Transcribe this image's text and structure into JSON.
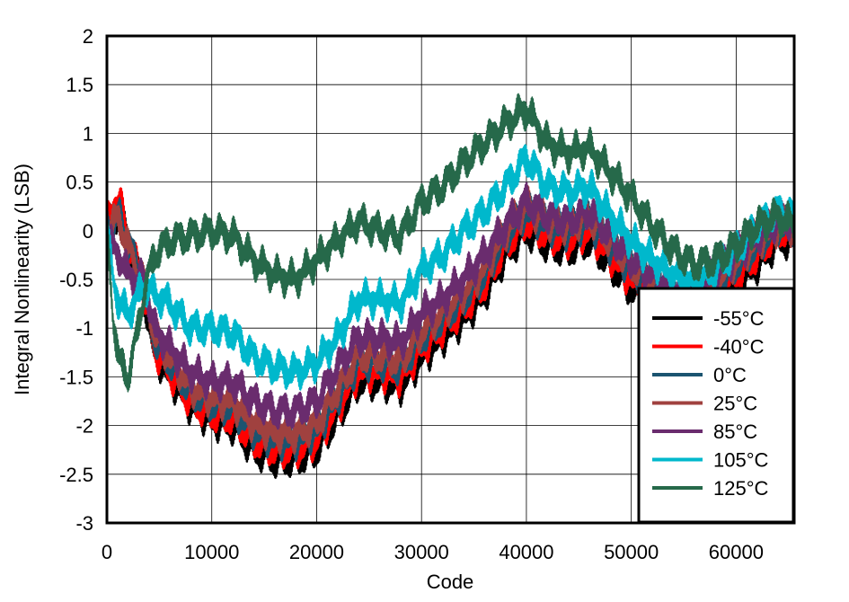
{
  "chart_data": {
    "type": "line",
    "xlabel": "Code",
    "ylabel": "Integral Nonlinearity (LSB)",
    "xlim": [
      0,
      65535
    ],
    "ylim": [
      -3,
      2
    ],
    "x_ticks": [
      0,
      10000,
      20000,
      30000,
      40000,
      50000,
      60000
    ],
    "x_tick_labels": [
      "0",
      "10000",
      "20000",
      "30000",
      "40000",
      "50000",
      "60000"
    ],
    "y_ticks": [
      2,
      1.5,
      1,
      0.5,
      0,
      -0.5,
      -1,
      -1.5,
      -2,
      -2.5,
      -3
    ],
    "y_tick_labels": [
      "2",
      "1.5",
      "1",
      "0.5",
      "0",
      "-0.5",
      "-1",
      "-1.5",
      "-2",
      "-2.5",
      "-3"
    ],
    "grid": true,
    "legend_position": "bottom-right",
    "ripple_amplitude_lsb": 0.3,
    "series": [
      {
        "name": "-55°C",
        "color": "#000000",
        "x": [
          0,
          600,
          1200,
          2000,
          2800,
          3600,
          4500,
          6000,
          8000,
          10000,
          12000,
          14000,
          16000,
          18000,
          20000,
          22000,
          24000,
          26000,
          28000,
          30000,
          32000,
          34000,
          36000,
          38000,
          40000,
          42000,
          44000,
          46000,
          48000,
          50000,
          52000,
          54000,
          56000,
          58000,
          60000,
          62000,
          64000,
          65535
        ],
        "y": [
          0.0,
          0.15,
          0.2,
          -0.1,
          -0.4,
          -0.7,
          -1.25,
          -1.5,
          -1.8,
          -1.95,
          -2.0,
          -2.25,
          -2.35,
          -2.35,
          -2.25,
          -1.9,
          -1.55,
          -1.55,
          -1.6,
          -1.3,
          -1.1,
          -0.9,
          -0.65,
          -0.25,
          0.0,
          -0.15,
          -0.2,
          -0.1,
          -0.35,
          -0.6,
          -0.75,
          -0.9,
          -0.9,
          -0.75,
          -0.55,
          -0.35,
          -0.1,
          -0.1
        ]
      },
      {
        "name": "-40°C",
        "color": "#ff0000",
        "x": [
          0,
          600,
          1200,
          2000,
          2800,
          3600,
          4500,
          6000,
          8000,
          10000,
          12000,
          14000,
          16000,
          18000,
          20000,
          22000,
          24000,
          26000,
          28000,
          30000,
          32000,
          34000,
          36000,
          38000,
          40000,
          42000,
          44000,
          46000,
          48000,
          50000,
          52000,
          54000,
          56000,
          58000,
          60000,
          62000,
          64000,
          65535
        ],
        "y": [
          0.05,
          0.25,
          0.3,
          -0.05,
          -0.35,
          -0.65,
          -1.2,
          -1.45,
          -1.75,
          -1.88,
          -1.92,
          -2.15,
          -2.25,
          -2.25,
          -2.15,
          -1.8,
          -1.45,
          -1.45,
          -1.5,
          -1.2,
          -1.0,
          -0.8,
          -0.55,
          -0.15,
          0.1,
          -0.05,
          -0.1,
          0.0,
          -0.25,
          -0.5,
          -0.65,
          -0.8,
          -0.8,
          -0.65,
          -0.45,
          -0.25,
          0.0,
          0.0
        ]
      },
      {
        "name": "0°C",
        "color": "#1b5470",
        "x": [
          0,
          600,
          1200,
          2000,
          2800,
          3600,
          4500,
          6000,
          8000,
          10000,
          12000,
          14000,
          16000,
          18000,
          20000,
          22000,
          24000,
          26000,
          28000,
          30000,
          32000,
          34000,
          36000,
          38000,
          40000,
          42000,
          44000,
          46000,
          48000,
          50000,
          52000,
          54000,
          56000,
          58000,
          60000,
          62000,
          64000,
          65535
        ],
        "y": [
          0.05,
          0.1,
          0.15,
          -0.1,
          -0.35,
          -0.6,
          -1.1,
          -1.35,
          -1.65,
          -1.78,
          -1.82,
          -2.05,
          -2.15,
          -2.15,
          -2.05,
          -1.7,
          -1.35,
          -1.35,
          -1.4,
          -1.1,
          -0.9,
          -0.7,
          -0.45,
          -0.05,
          0.2,
          0.05,
          0.0,
          0.1,
          -0.15,
          -0.4,
          -0.55,
          -0.7,
          -0.7,
          -0.55,
          -0.35,
          -0.15,
          0.05,
          0.05
        ]
      },
      {
        "name": "25°C",
        "color": "#a0413f",
        "x": [
          0,
          600,
          1200,
          2000,
          2800,
          3600,
          4500,
          6000,
          8000,
          10000,
          12000,
          14000,
          16000,
          18000,
          20000,
          22000,
          24000,
          26000,
          28000,
          30000,
          32000,
          34000,
          36000,
          38000,
          40000,
          42000,
          44000,
          46000,
          48000,
          50000,
          52000,
          54000,
          56000,
          58000,
          60000,
          62000,
          64000,
          65535
        ],
        "y": [
          0.0,
          0.1,
          0.1,
          -0.15,
          -0.4,
          -0.55,
          -1.05,
          -1.3,
          -1.6,
          -1.72,
          -1.75,
          -1.98,
          -2.08,
          -2.08,
          -1.98,
          -1.62,
          -1.28,
          -1.28,
          -1.33,
          -1.03,
          -0.83,
          -0.63,
          -0.38,
          0.0,
          0.25,
          0.1,
          0.05,
          0.15,
          -0.1,
          -0.35,
          -0.5,
          -0.65,
          -0.65,
          -0.5,
          -0.3,
          -0.1,
          0.05,
          0.05
        ]
      },
      {
        "name": "85°C",
        "color": "#6a2c6e",
        "x": [
          0,
          600,
          1200,
          2000,
          2800,
          3600,
          4500,
          6000,
          8000,
          10000,
          12000,
          14000,
          16000,
          18000,
          20000,
          22000,
          24000,
          26000,
          28000,
          30000,
          32000,
          34000,
          36000,
          38000,
          40000,
          42000,
          44000,
          46000,
          48000,
          50000,
          52000,
          54000,
          56000,
          58000,
          60000,
          62000,
          64000,
          65535
        ],
        "y": [
          0.0,
          -0.2,
          -0.25,
          -0.45,
          -0.5,
          -0.5,
          -1.0,
          -1.2,
          -1.45,
          -1.55,
          -1.55,
          -1.75,
          -1.85,
          -1.85,
          -1.75,
          -1.4,
          -1.1,
          -1.1,
          -1.15,
          -0.85,
          -0.7,
          -0.5,
          -0.25,
          0.05,
          0.3,
          0.15,
          0.1,
          0.2,
          -0.05,
          -0.3,
          -0.45,
          -0.6,
          -0.6,
          -0.45,
          -0.25,
          -0.05,
          0.1,
          0.1
        ]
      },
      {
        "name": "105°C",
        "color": "#00b8cc",
        "x": [
          0,
          600,
          1200,
          2000,
          2800,
          3600,
          4500,
          6000,
          8000,
          10000,
          12000,
          14000,
          16000,
          18000,
          20000,
          22000,
          24000,
          26000,
          28000,
          30000,
          32000,
          34000,
          36000,
          38000,
          40000,
          42000,
          44000,
          46000,
          48000,
          50000,
          52000,
          54000,
          56000,
          58000,
          60000,
          62000,
          64000,
          65535
        ],
        "y": [
          0.0,
          -0.5,
          -0.75,
          -0.85,
          -0.7,
          -0.55,
          -0.65,
          -0.75,
          -1.0,
          -1.0,
          -1.05,
          -1.3,
          -1.4,
          -1.45,
          -1.35,
          -1.1,
          -0.7,
          -0.7,
          -0.75,
          -0.4,
          -0.25,
          0.0,
          0.2,
          0.45,
          0.75,
          0.45,
          0.4,
          0.45,
          0.15,
          -0.1,
          -0.3,
          -0.45,
          -0.55,
          -0.4,
          -0.2,
          0.05,
          0.2,
          0.15
        ]
      },
      {
        "name": "125°C",
        "color": "#26694a",
        "x": [
          0,
          600,
          1200,
          2000,
          2800,
          3600,
          4500,
          6000,
          8000,
          10000,
          12000,
          14000,
          16000,
          18000,
          20000,
          22000,
          24000,
          26000,
          28000,
          30000,
          32000,
          34000,
          36000,
          38000,
          40000,
          42000,
          44000,
          46000,
          48000,
          50000,
          52000,
          54000,
          56000,
          58000,
          60000,
          62000,
          64000,
          65535
        ],
        "y": [
          0.0,
          -0.9,
          -1.35,
          -1.5,
          -1.1,
          -0.6,
          -0.25,
          -0.1,
          -0.05,
          0.0,
          -0.05,
          -0.3,
          -0.45,
          -0.5,
          -0.3,
          -0.1,
          0.1,
          0.0,
          -0.05,
          0.3,
          0.45,
          0.7,
          0.9,
          1.1,
          1.25,
          0.9,
          0.8,
          0.85,
          0.6,
          0.35,
          0.05,
          -0.2,
          -0.35,
          -0.3,
          -0.15,
          0.05,
          0.15,
          0.05
        ]
      }
    ]
  }
}
